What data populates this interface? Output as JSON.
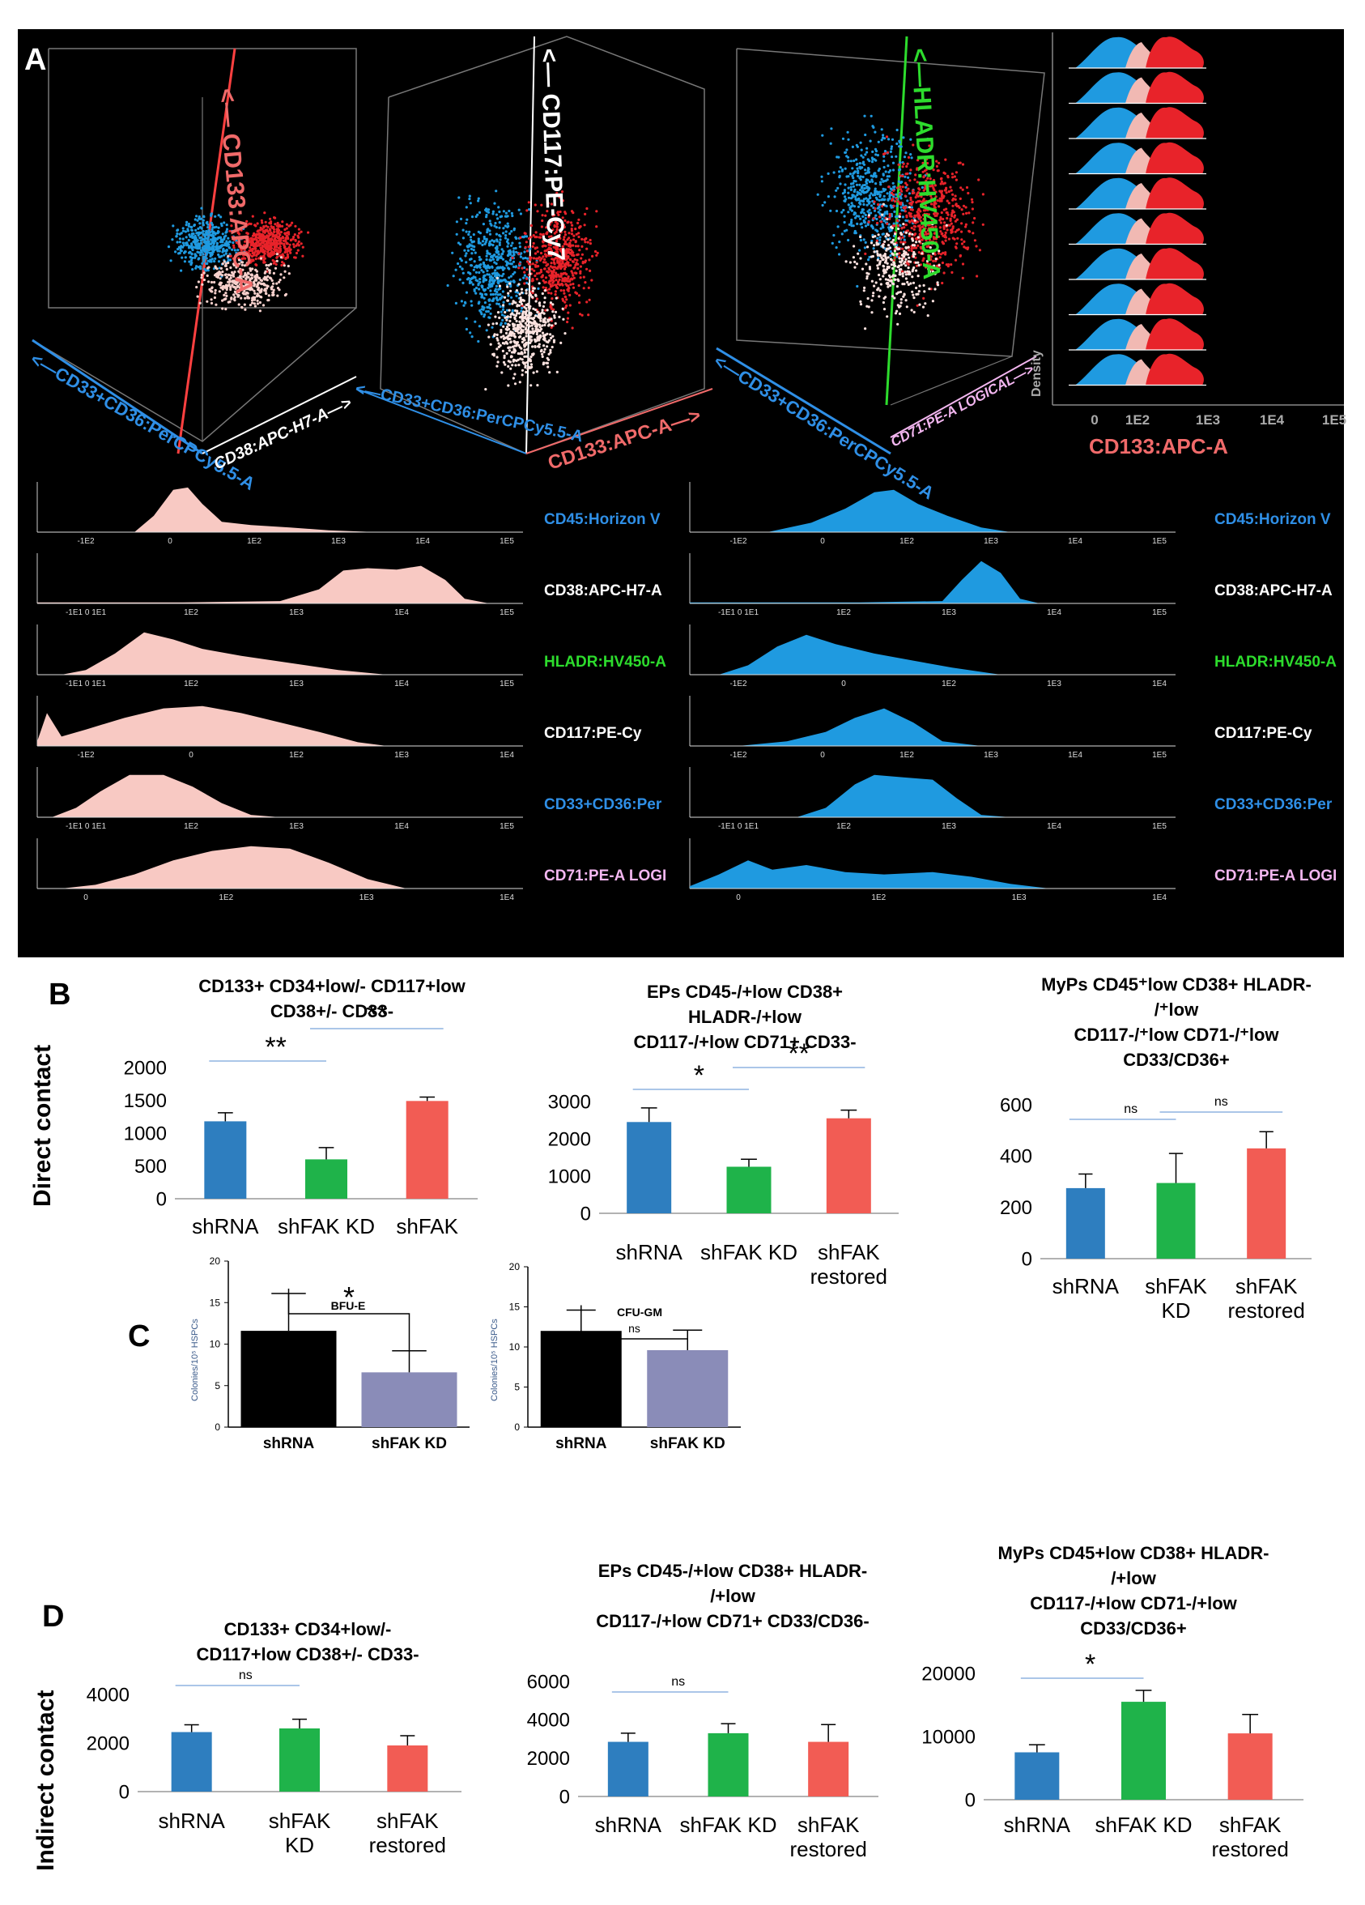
{
  "panel_labels": {
    "a": "A",
    "b": "B",
    "c": "C",
    "d": "D"
  },
  "row_labels": {
    "direct": "Direct contact",
    "indirect": "Indirect contact"
  },
  "colors": {
    "shRNA": "#2e7ebf",
    "shFAK_KD": "#1fb34a",
    "shFAK": "#f25c54",
    "bfu_black": "#000000",
    "bfu_lavender": "#8a8cb8",
    "pink": "#f8c9c3",
    "blue": "#1f9ae0",
    "red": "#e8232a",
    "green": "#2ddc2d",
    "axis_blue": "#2f8fe6",
    "axis_red": "#f06a6a",
    "axis_pink": "#f3b6f0"
  },
  "flow_3d": [
    {
      "vertical_axis": "<— CD133:APC-A",
      "left_axis": "<—CD33+CD36:PerCPCy5.5-A",
      "right_axis": "CD38:APC-H7-A—>"
    },
    {
      "vertical_axis": "<— CD117:PE-Cy7",
      "left_axis": "<—CD33+CD36:PerCPCy5.5-A",
      "right_axis": "CD133:APC-A—>"
    },
    {
      "vertical_axis": "<—HLADR:HV450-A",
      "left_axis": "<—CD33+CD36:PerCPCy5.5-A",
      "right_axis": "CD71:PE-A LOGICAL—>"
    }
  ],
  "density_panel": {
    "ylabel": "Density",
    "xlabel": "CD133:APC-A",
    "ticks": [
      "0",
      "1E2",
      "1E3",
      "1E4",
      "1E5"
    ]
  },
  "histogram_labels": [
    "CD45:Horizon V",
    "CD38:APC-H7-A",
    "HLADR:HV450-A",
    "CD117:PE-Cy",
    "CD33+CD36:Per",
    "CD71:PE-A LOGI"
  ],
  "histogram_ticks": {
    "left": [
      [
        "-1E2",
        "0",
        "1E2",
        "1E3",
        "1E4",
        "1E5"
      ],
      [
        "-1E1 0 1E1",
        "1E2",
        "1E3",
        "1E4",
        "1E5"
      ],
      [
        "-1E1 0 1E1",
        "1E2",
        "1E3",
        "1E4",
        "1E5"
      ],
      [
        "-1E2",
        "0",
        "1E2",
        "1E3",
        "1E4"
      ],
      [
        "-1E1 0 1E1",
        "1E2",
        "1E3",
        "1E4",
        "1E5"
      ],
      [
        "0",
        "1E2",
        "1E3",
        "1E4"
      ]
    ],
    "right": [
      [
        "-1E2",
        "0",
        "1E2",
        "1E3",
        "1E4",
        "1E5"
      ],
      [
        "-1E1 0 1E1",
        "1E2",
        "1E3",
        "1E4",
        "1E5"
      ],
      [
        "-1E2",
        "0",
        "1E2",
        "1E3",
        "1E4"
      ],
      [
        "-1E2",
        "0",
        "1E2",
        "1E3",
        "1E4",
        "1E5"
      ],
      [
        "-1E1 0 1E1",
        "1E2",
        "1E3",
        "1E4",
        "1E5"
      ],
      [
        "0",
        "1E2",
        "1E3",
        "1E4"
      ]
    ]
  },
  "chart_data": [
    {
      "id": "B1",
      "type": "bar",
      "title": [
        "CD133+ CD34+low/- CD117+low",
        "CD38+/- CD33-"
      ],
      "categories": [
        [
          "shRNA"
        ],
        [
          "shFAK KD"
        ],
        [
          "shFAK"
        ]
      ],
      "values": [
        1180,
        600,
        1490
      ],
      "errors": [
        130,
        180,
        60
      ],
      "ylim": [
        0,
        2000
      ],
      "yticks": [
        0,
        500,
        1000,
        1500,
        2000
      ],
      "ytick_labels": [
        "0",
        "500",
        "1000",
        "1500",
        "2000"
      ],
      "series_colors": [
        "shRNA",
        "shFAK_KD",
        "shFAK"
      ],
      "significance": [
        {
          "from": 0,
          "to": 1,
          "label": "**"
        },
        {
          "from": 1,
          "to": 2,
          "label": "**"
        }
      ]
    },
    {
      "id": "B2",
      "type": "bar",
      "title": [
        "EPs CD45-/+low CD38+",
        "HLADR-/+low",
        "CD117-/+low CD71+ CD33-"
      ],
      "categories": [
        [
          "shRNA"
        ],
        [
          "shFAK KD"
        ],
        [
          "shFAK",
          "restored"
        ]
      ],
      "values": [
        2450,
        1250,
        2550
      ],
      "errors": [
        380,
        200,
        220
      ],
      "ylim": [
        0,
        3000
      ],
      "yticks": [
        0,
        1000,
        2000,
        3000
      ],
      "ytick_labels": [
        "0",
        "1000",
        "2000",
        "3000"
      ],
      "series_colors": [
        "shRNA",
        "shFAK_KD",
        "shFAK"
      ],
      "significance": [
        {
          "from": 0,
          "to": 1,
          "label": "*"
        },
        {
          "from": 1,
          "to": 2,
          "label": "**"
        }
      ]
    },
    {
      "id": "B3",
      "type": "bar",
      "title": [
        "MyPs CD45⁺low CD38+ HLADR-",
        "/⁺low",
        "CD117-/⁺low CD71-/⁺low",
        "CD33/CD36+"
      ],
      "categories": [
        [
          "shRNA"
        ],
        [
          "shFAK",
          "KD"
        ],
        [
          "shFAK",
          "restored"
        ]
      ],
      "values": [
        275,
        295,
        430
      ],
      "errors": [
        55,
        115,
        65
      ],
      "ylim": [
        0,
        600
      ],
      "yticks": [
        0,
        200,
        400,
        600
      ],
      "ytick_labels": [
        "0",
        "200",
        "400",
        "600"
      ],
      "series_colors": [
        "shRNA",
        "shFAK_KD",
        "shFAK"
      ],
      "significance": [
        {
          "from": 0,
          "to": 1,
          "label": "ns"
        },
        {
          "from": 1,
          "to": 2,
          "label": "ns"
        }
      ]
    },
    {
      "id": "C1",
      "type": "bar",
      "title": [
        "BFU-E"
      ],
      "ylabel": "Colonies/10⁵ HSPCs",
      "categories": [
        [
          "shRNA"
        ],
        [
          "shFAK KD"
        ]
      ],
      "values": [
        11.6,
        6.6
      ],
      "errors": [
        4.5,
        2.6
      ],
      "ylim": [
        0,
        20
      ],
      "yticks": [
        0,
        5,
        10,
        15,
        20
      ],
      "ytick_labels": [
        "0",
        "5",
        "10",
        "15",
        "20"
      ],
      "series_colors": [
        "bfu_black",
        "bfu_lavender"
      ],
      "significance": [
        {
          "from": 0,
          "to": 1,
          "label": "*"
        }
      ]
    },
    {
      "id": "C2",
      "type": "bar",
      "title": [
        "CFU-GM"
      ],
      "ylabel": "Colonies/10⁵ HSPCs",
      "categories": [
        [
          "shRNA"
        ],
        [
          "shFAK KD"
        ]
      ],
      "values": [
        12.0,
        9.6
      ],
      "errors": [
        2.6,
        2.5
      ],
      "ylim": [
        0,
        20
      ],
      "yticks": [
        0,
        5,
        10,
        15,
        20
      ],
      "ytick_labels": [
        "0",
        "5",
        "10",
        "15",
        "20"
      ],
      "series_colors": [
        "bfu_black",
        "bfu_lavender"
      ],
      "significance": [
        {
          "from": 0,
          "to": 1,
          "label": "ns"
        }
      ]
    },
    {
      "id": "D1",
      "type": "bar",
      "title": [
        "CD133+ CD34+low/-",
        "CD117+low CD38+/- CD33-"
      ],
      "categories": [
        [
          "shRNA"
        ],
        [
          "shFAK",
          "KD"
        ],
        [
          "shFAK",
          "restored"
        ]
      ],
      "values": [
        2450,
        2600,
        1900
      ],
      "errors": [
        300,
        380,
        400
      ],
      "ylim": [
        0,
        4000
      ],
      "yticks": [
        0,
        2000,
        4000
      ],
      "ytick_labels": [
        "0",
        "2000",
        "4000"
      ],
      "series_colors": [
        "shRNA",
        "shFAK_KD",
        "shFAK"
      ],
      "significance": [
        {
          "from": 0,
          "to": 1,
          "label": "ns"
        }
      ]
    },
    {
      "id": "D2",
      "type": "bar",
      "title": [
        "EPs CD45-/+low CD38+ HLADR-",
        "/+low",
        "CD117-/+low CD71+ CD33/CD36-"
      ],
      "categories": [
        [
          "shRNA"
        ],
        [
          "shFAK KD"
        ],
        [
          "shFAK",
          "restored"
        ]
      ],
      "values": [
        2850,
        3300,
        2850
      ],
      "errors": [
        450,
        500,
        900
      ],
      "ylim": [
        0,
        6000
      ],
      "yticks": [
        0,
        2000,
        4000,
        6000
      ],
      "ytick_labels": [
        "0",
        "2000",
        "4000",
        "6000"
      ],
      "series_colors": [
        "shRNA",
        "shFAK_KD",
        "shFAK"
      ],
      "significance": [
        {
          "from": 0,
          "to": 1,
          "label": "ns"
        }
      ]
    },
    {
      "id": "D3",
      "type": "bar",
      "title": [
        "MyPs CD45+low CD38+ HLADR-",
        "/+low",
        "CD117-/+low CD71-/+low",
        "CD33/CD36+"
      ],
      "categories": [
        [
          "shRNA"
        ],
        [
          "shFAK KD"
        ],
        [
          "shFAK",
          "restored"
        ]
      ],
      "values": [
        7500,
        15500,
        10500
      ],
      "errors": [
        1200,
        1800,
        3000
      ],
      "ylim": [
        0,
        20000
      ],
      "yticks": [
        0,
        10000,
        20000
      ],
      "ytick_labels": [
        "0",
        "10000",
        "20000"
      ],
      "series_colors": [
        "shRNA",
        "shFAK_KD",
        "shFAK"
      ],
      "significance": [
        {
          "from": 0,
          "to": 1,
          "label": "*"
        }
      ]
    }
  ]
}
